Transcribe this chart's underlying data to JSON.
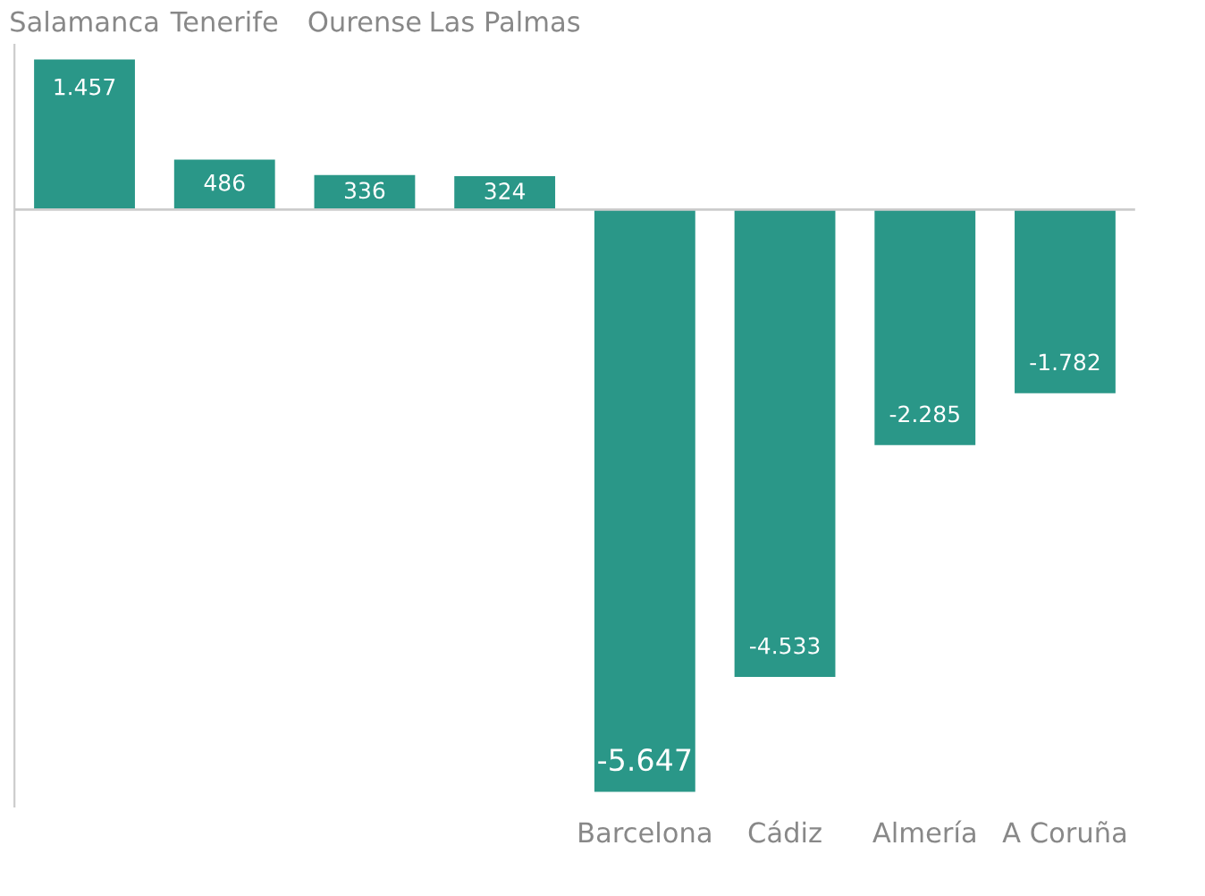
{
  "chart_data": {
    "type": "bar",
    "categories": [
      "Salamanca",
      "Tenerife",
      "Ourense",
      "Las Palmas",
      "Barcelona",
      "Cádiz",
      "Almería",
      "A Coruña"
    ],
    "values": [
      1457,
      486,
      336,
      324,
      -5647,
      -4533,
      -2285,
      -1782
    ],
    "value_labels": [
      "1.457",
      "486",
      "336",
      "324",
      "-5.647",
      "-4.533",
      "-2.285",
      "-1.782"
    ],
    "color": "#2a9788"
  }
}
